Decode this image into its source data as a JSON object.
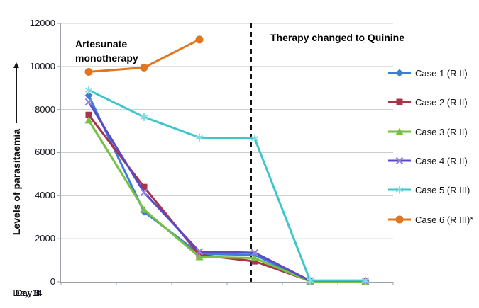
{
  "chart_data": {
    "type": "line",
    "title": "",
    "ylabel": "Levels of parasitaemia",
    "xlabel": "",
    "categories": [
      "Day 0",
      "Day 1",
      "Day 3",
      "Day 5",
      "Day 7",
      "Day 14"
    ],
    "ylim": [
      0,
      12000
    ],
    "ytick_interval": 2000,
    "yticks": [
      0,
      2000,
      4000,
      6000,
      8000,
      10000,
      12000
    ],
    "ytick_labels_desc": [
      "12000",
      "10000",
      "8000",
      "6000",
      "4000",
      "2000",
      "0"
    ],
    "grid": "horizontal",
    "legend_position": "right",
    "series": [
      {
        "name": "Case 1 (R II)",
        "marker": "diamond",
        "color": "#3c7dd9",
        "marker_color": "#3c7dd9",
        "values": [
          8650,
          3250,
          1300,
          1250,
          30,
          30
        ]
      },
      {
        "name": "Case 2 (R II)",
        "marker": "square",
        "color": "#a7344a",
        "marker_color": "#a7344a",
        "values": [
          7750,
          4400,
          1250,
          950,
          40,
          40
        ]
      },
      {
        "name": "Case 3 (R II)",
        "marker": "triangle",
        "color": "#76c043",
        "marker_color": "#76c043",
        "values": [
          7500,
          3350,
          1150,
          1100,
          15,
          15
        ]
      },
      {
        "name": "Case 4 (R II)",
        "marker": "x",
        "color": "#5a49c8",
        "marker_color": "#9083de",
        "values": [
          8350,
          4150,
          1400,
          1350,
          50,
          50
        ]
      },
      {
        "name": "Case 5 (R III)",
        "marker": "star",
        "color": "#3fc6cc",
        "marker_color": "#85dde0",
        "values": [
          8900,
          7650,
          6700,
          6650,
          60,
          60
        ]
      },
      {
        "name": "Case 6 (R III)*",
        "marker": "circle",
        "color": "#e2761e",
        "marker_color": "#e2761e",
        "values": [
          9750,
          9950,
          11250,
          null,
          null,
          null
        ]
      }
    ],
    "divider": {
      "style": "dashed-vertical",
      "color": "#111111",
      "at_category": "Day 5",
      "at_index": 3
    },
    "annotations": [
      {
        "id": "left",
        "text": "Artesunate monotherapy"
      },
      {
        "id": "right",
        "text": "Therapy changed to Quinine"
      }
    ],
    "colors": {
      "gridline": "#c9cdd1",
      "axis": "#9aa0a6",
      "tick_label": "#15151f"
    }
  }
}
